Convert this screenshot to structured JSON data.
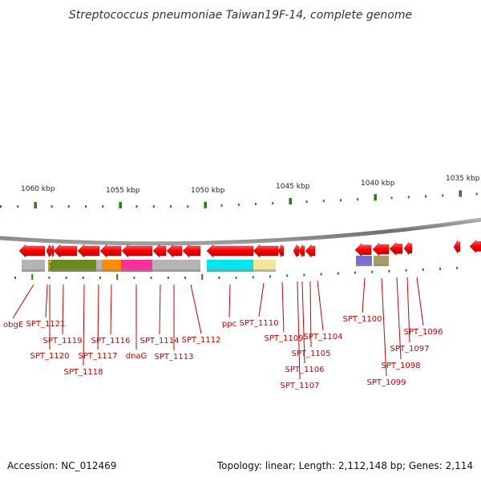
{
  "title": "Streptococcus pneumoniae Taiwan19F-14, complete genome",
  "ruler_labels": [
    "1060 kbp",
    "1055 kbp",
    "1050 kbp",
    "1045 kbp",
    "1040 kbp",
    "1035 kbp"
  ],
  "gene_labels": [
    "obgE",
    "SPT_1121",
    "SPT_1120",
    "SPT_1119",
    "SPT_1118",
    "SPT_1117",
    "SPT_1116",
    "dnaG",
    "SPT_1114",
    "SPT_1113",
    "SPT_1112",
    "ppc",
    "SPT_1110",
    "SPT_1109",
    "SPT_1107",
    "SPT_1106",
    "SPT_1105",
    "SPT_1104",
    "SPT_1100",
    "SPT_1099",
    "SPT_1098",
    "SPT_1097",
    "SPT_1096"
  ],
  "footer": {
    "accession": "Accession: NC_012469",
    "summary": "Topology: linear; Length: 2,112,148 bp; Genes: 2,114"
  },
  "colors": {
    "gene_arrow": "#ff0000",
    "tick": "#2e7d1a",
    "label_line": "#cc0000",
    "backbone": "#808080"
  }
}
